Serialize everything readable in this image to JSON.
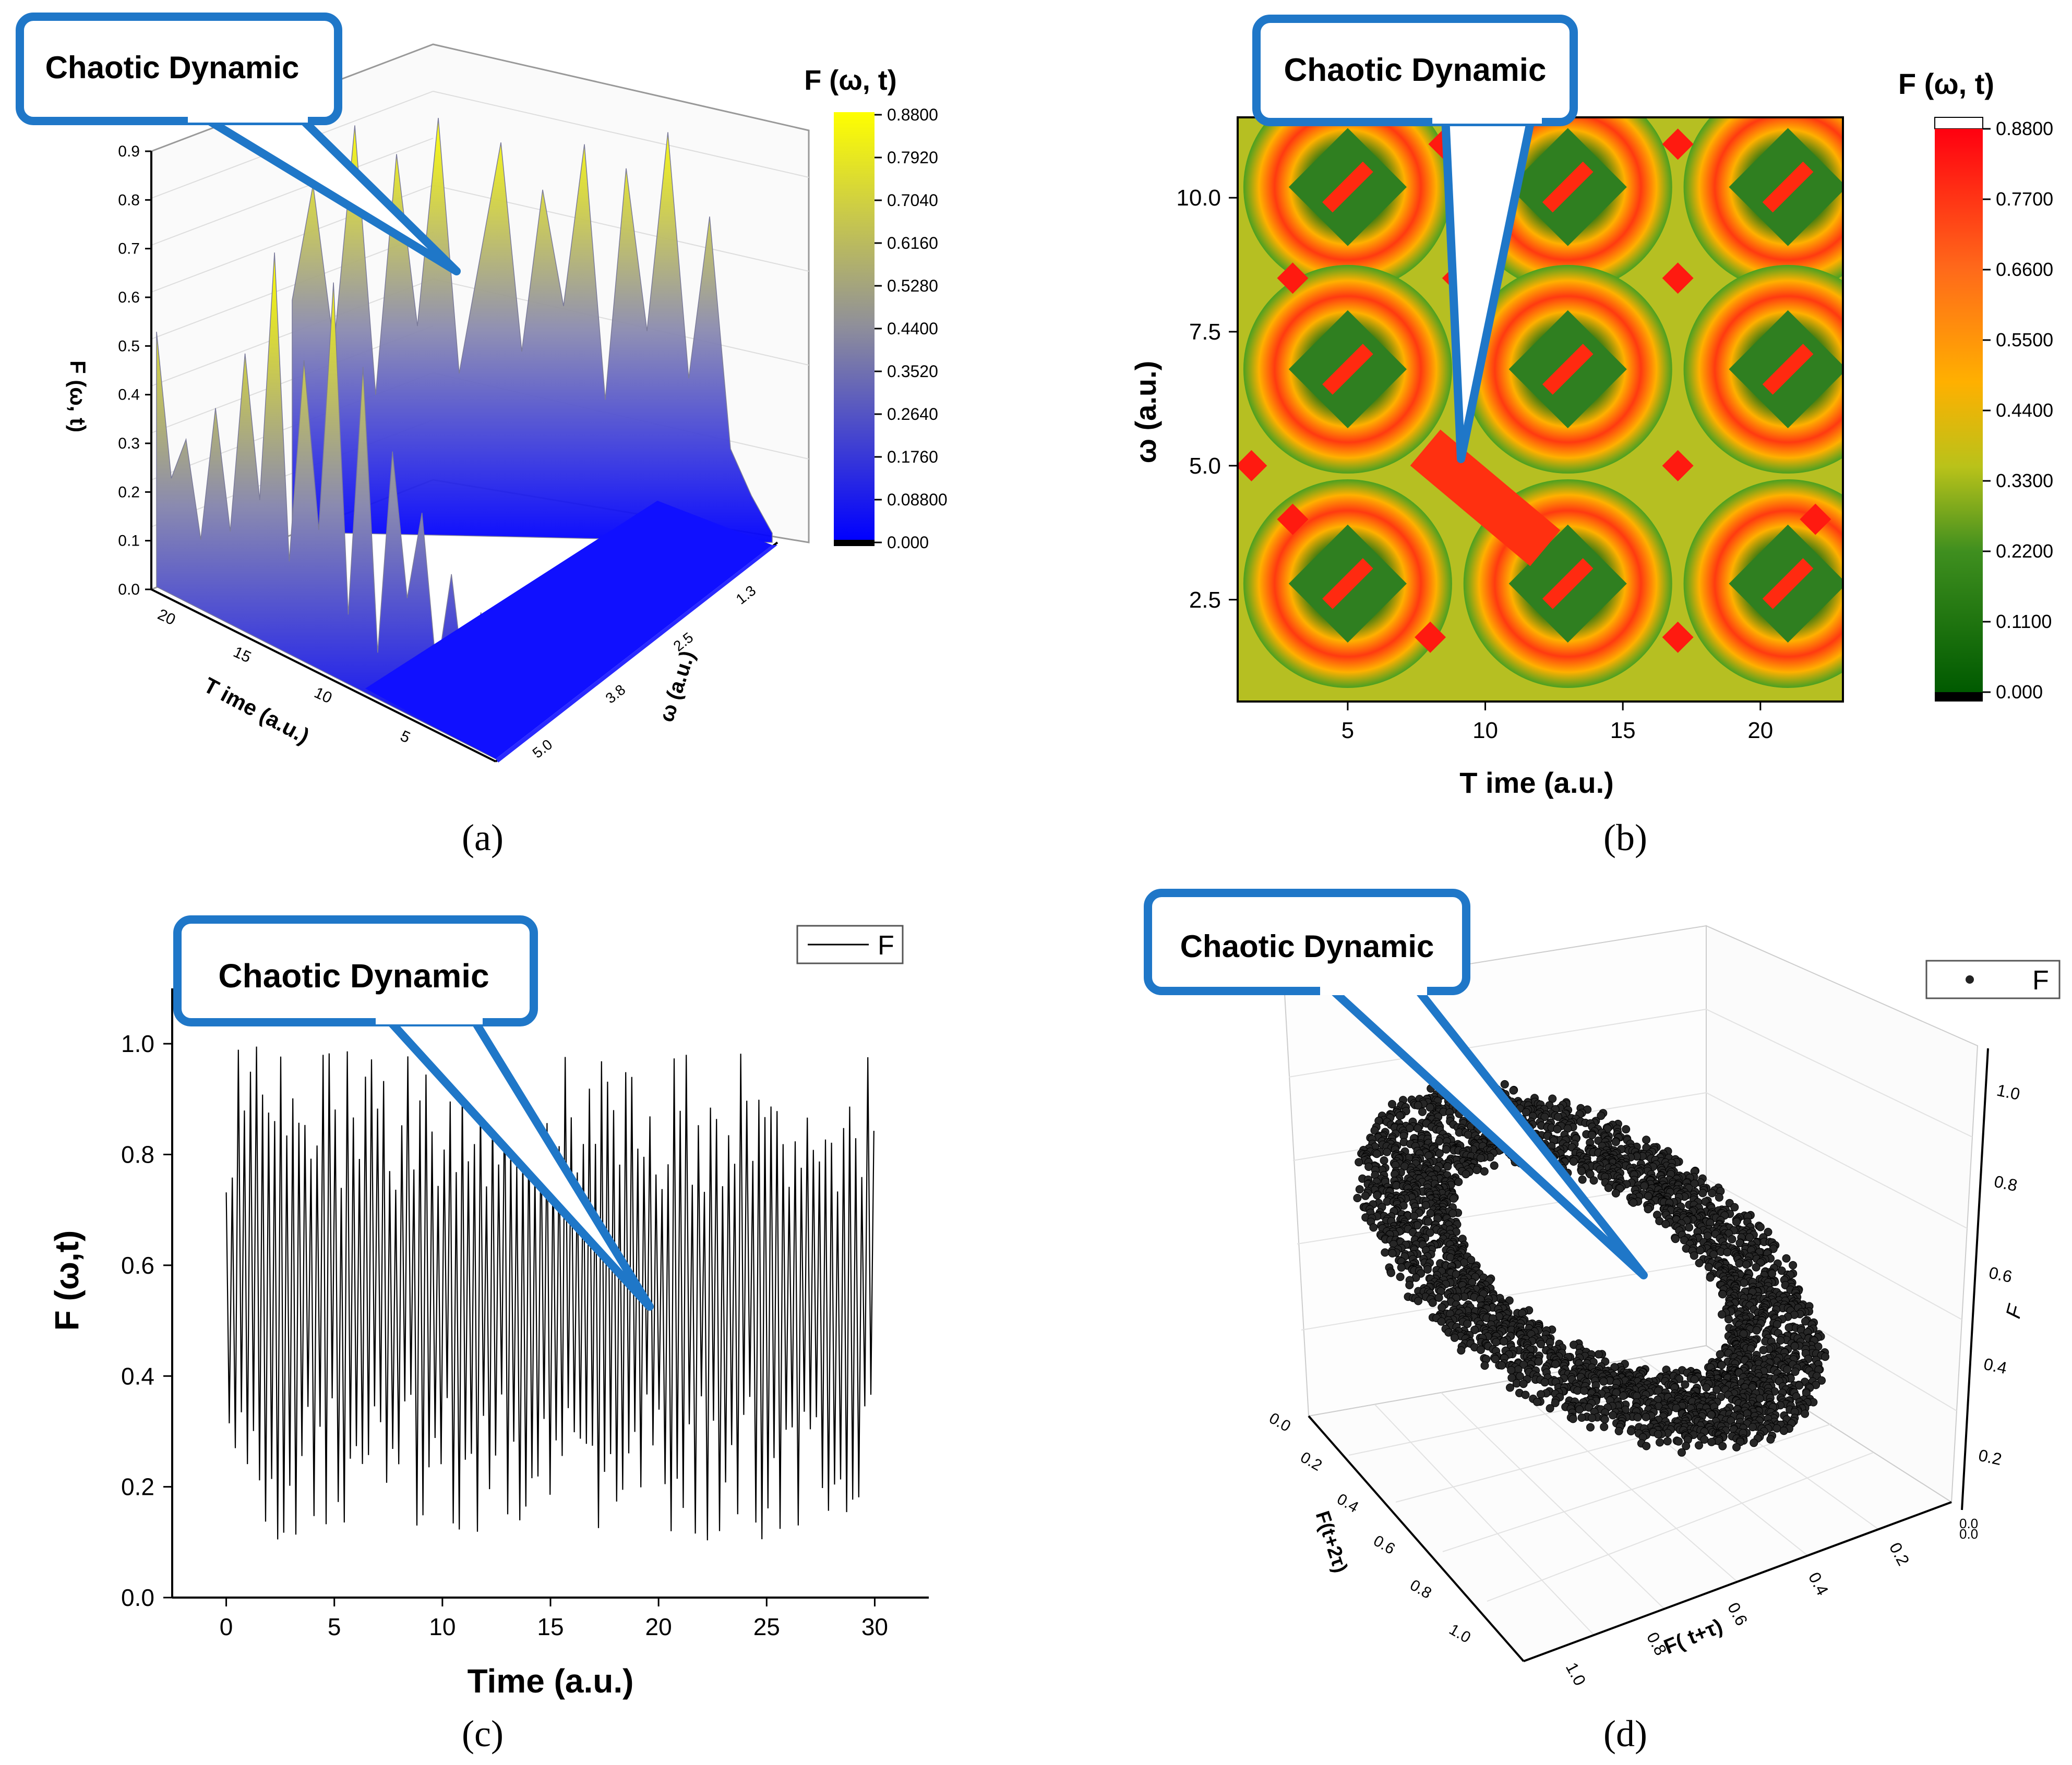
{
  "figure": {
    "panels": [
      "(a)",
      "(b)",
      "(c)",
      "(d)"
    ],
    "callout_text": "Chaotic Dynamic",
    "colors": {
      "callout_border": "#1f77c8",
      "surface_low": "#0000ff",
      "surface_high": "#ffff00",
      "heat_low": "#006400",
      "heat_mid": "#ffa500",
      "heat_high": "#ff0000",
      "line": "#000000",
      "points": "#222222"
    }
  },
  "chart_data": [
    {
      "id": "a",
      "type": "surface3d",
      "title": "",
      "colorbar_title": "F (ω, t)",
      "colorbar_ticks": [
        "0.8800",
        "0.7920",
        "0.7040",
        "0.6160",
        "0.5280",
        "0.4400",
        "0.3520",
        "0.2640",
        "0.1760",
        "0.08800",
        "0.000"
      ],
      "zlabel": "F (ω, t)",
      "z_ticks": [
        "0.9",
        "0.8",
        "0.7",
        "0.6",
        "0.5",
        "0.4",
        "0.3",
        "0.2",
        "0.1",
        "0.0"
      ],
      "xlabel": "T ime (a.u.)",
      "x_ticks": [
        "20",
        "15",
        "10",
        "5"
      ],
      "ylabel": "ω (a.u.)",
      "y_ticks": [
        "1.3",
        "2.5",
        "3.8",
        "5.0"
      ],
      "zlim": [
        0,
        0.9
      ],
      "x": [
        24,
        23,
        22,
        21,
        20,
        19,
        18,
        17,
        16,
        15,
        14,
        13,
        12,
        11,
        10,
        9,
        8,
        7,
        6,
        5,
        4,
        3,
        2,
        1
      ],
      "front_profile": [
        0.55,
        0.25,
        0.35,
        0.15,
        0.45,
        0.2,
        0.6,
        0.3,
        0.85,
        0.2,
        0.65,
        0.3,
        0.85,
        0.15,
        0.7,
        0.1,
        0.55,
        0.25,
        0.45,
        0.12,
        0.35,
        0.1,
        0.3,
        0.05
      ],
      "back_profile": [
        0.5,
        0.75,
        0.4,
        0.88,
        0.3,
        0.82,
        0.45,
        0.9,
        0.35,
        0.6,
        0.85,
        0.4,
        0.75,
        0.5,
        0.85,
        0.3,
        0.8,
        0.45,
        0.88,
        0.35,
        0.7,
        0.2,
        0.1,
        0.02
      ]
    },
    {
      "id": "b",
      "type": "heatmap",
      "xlabel": "T ime (a.u.)",
      "ylabel": "ω (a.u.)",
      "x_ticks": [
        "5",
        "10",
        "15",
        "20"
      ],
      "x_tick_values": [
        5,
        10,
        15,
        20
      ],
      "y_ticks": [
        "2.5",
        "5.0",
        "7.5",
        "10.0"
      ],
      "y_tick_values": [
        2.5,
        5.0,
        7.5,
        10.0
      ],
      "xlim": [
        1,
        23
      ],
      "ylim": [
        0.6,
        11.5
      ],
      "colorbar_title": "F (ω, t)",
      "colorbar_ticks": [
        "0.8800",
        "0.7700",
        "0.6600",
        "0.5500",
        "0.4400",
        "0.3300",
        "0.2200",
        "0.1100",
        "0.000"
      ]
    },
    {
      "id": "c",
      "type": "line",
      "xlabel": "Time (a.u.)",
      "ylabel": "F (ω,t)",
      "legend": "F",
      "legend_position": "top-right",
      "x_ticks": [
        "0",
        "5",
        "10",
        "15",
        "20",
        "25",
        "30"
      ],
      "x_tick_values": [
        0,
        5,
        10,
        15,
        20,
        25,
        30
      ],
      "y_ticks": [
        "0.0",
        "0.2",
        "0.4",
        "0.6",
        "0.8",
        "1.0"
      ],
      "y_tick_values": [
        0.0,
        0.2,
        0.4,
        0.6,
        0.8,
        1.0
      ],
      "xlim": [
        -2.5,
        32.5
      ],
      "ylim": [
        0,
        1.1
      ],
      "x_range": [
        0,
        30
      ],
      "value_range": [
        0.1,
        1.02
      ],
      "mean": 0.55,
      "oscillation_period": 0.28
    },
    {
      "id": "d",
      "type": "scatter3d",
      "legend": "F",
      "legend_position": "top-right",
      "zlabel": "F",
      "z_ticks": [
        "1.0",
        "0.8",
        "0.6",
        "0.4",
        "0.2"
      ],
      "xlabel": "F( t+τ)",
      "x_ticks": [
        "1.0",
        "0.8",
        "0.6",
        "0.4",
        "0.2"
      ],
      "ylabel": "F(t+2τ)",
      "y_ticks": [
        "0.0",
        "0.2",
        "0.4",
        "0.6",
        "0.8",
        "1.0"
      ],
      "corner_ticks": [
        "0.0",
        "0.0"
      ],
      "point_count": 3200,
      "attractor": "torus-like ring"
    }
  ]
}
